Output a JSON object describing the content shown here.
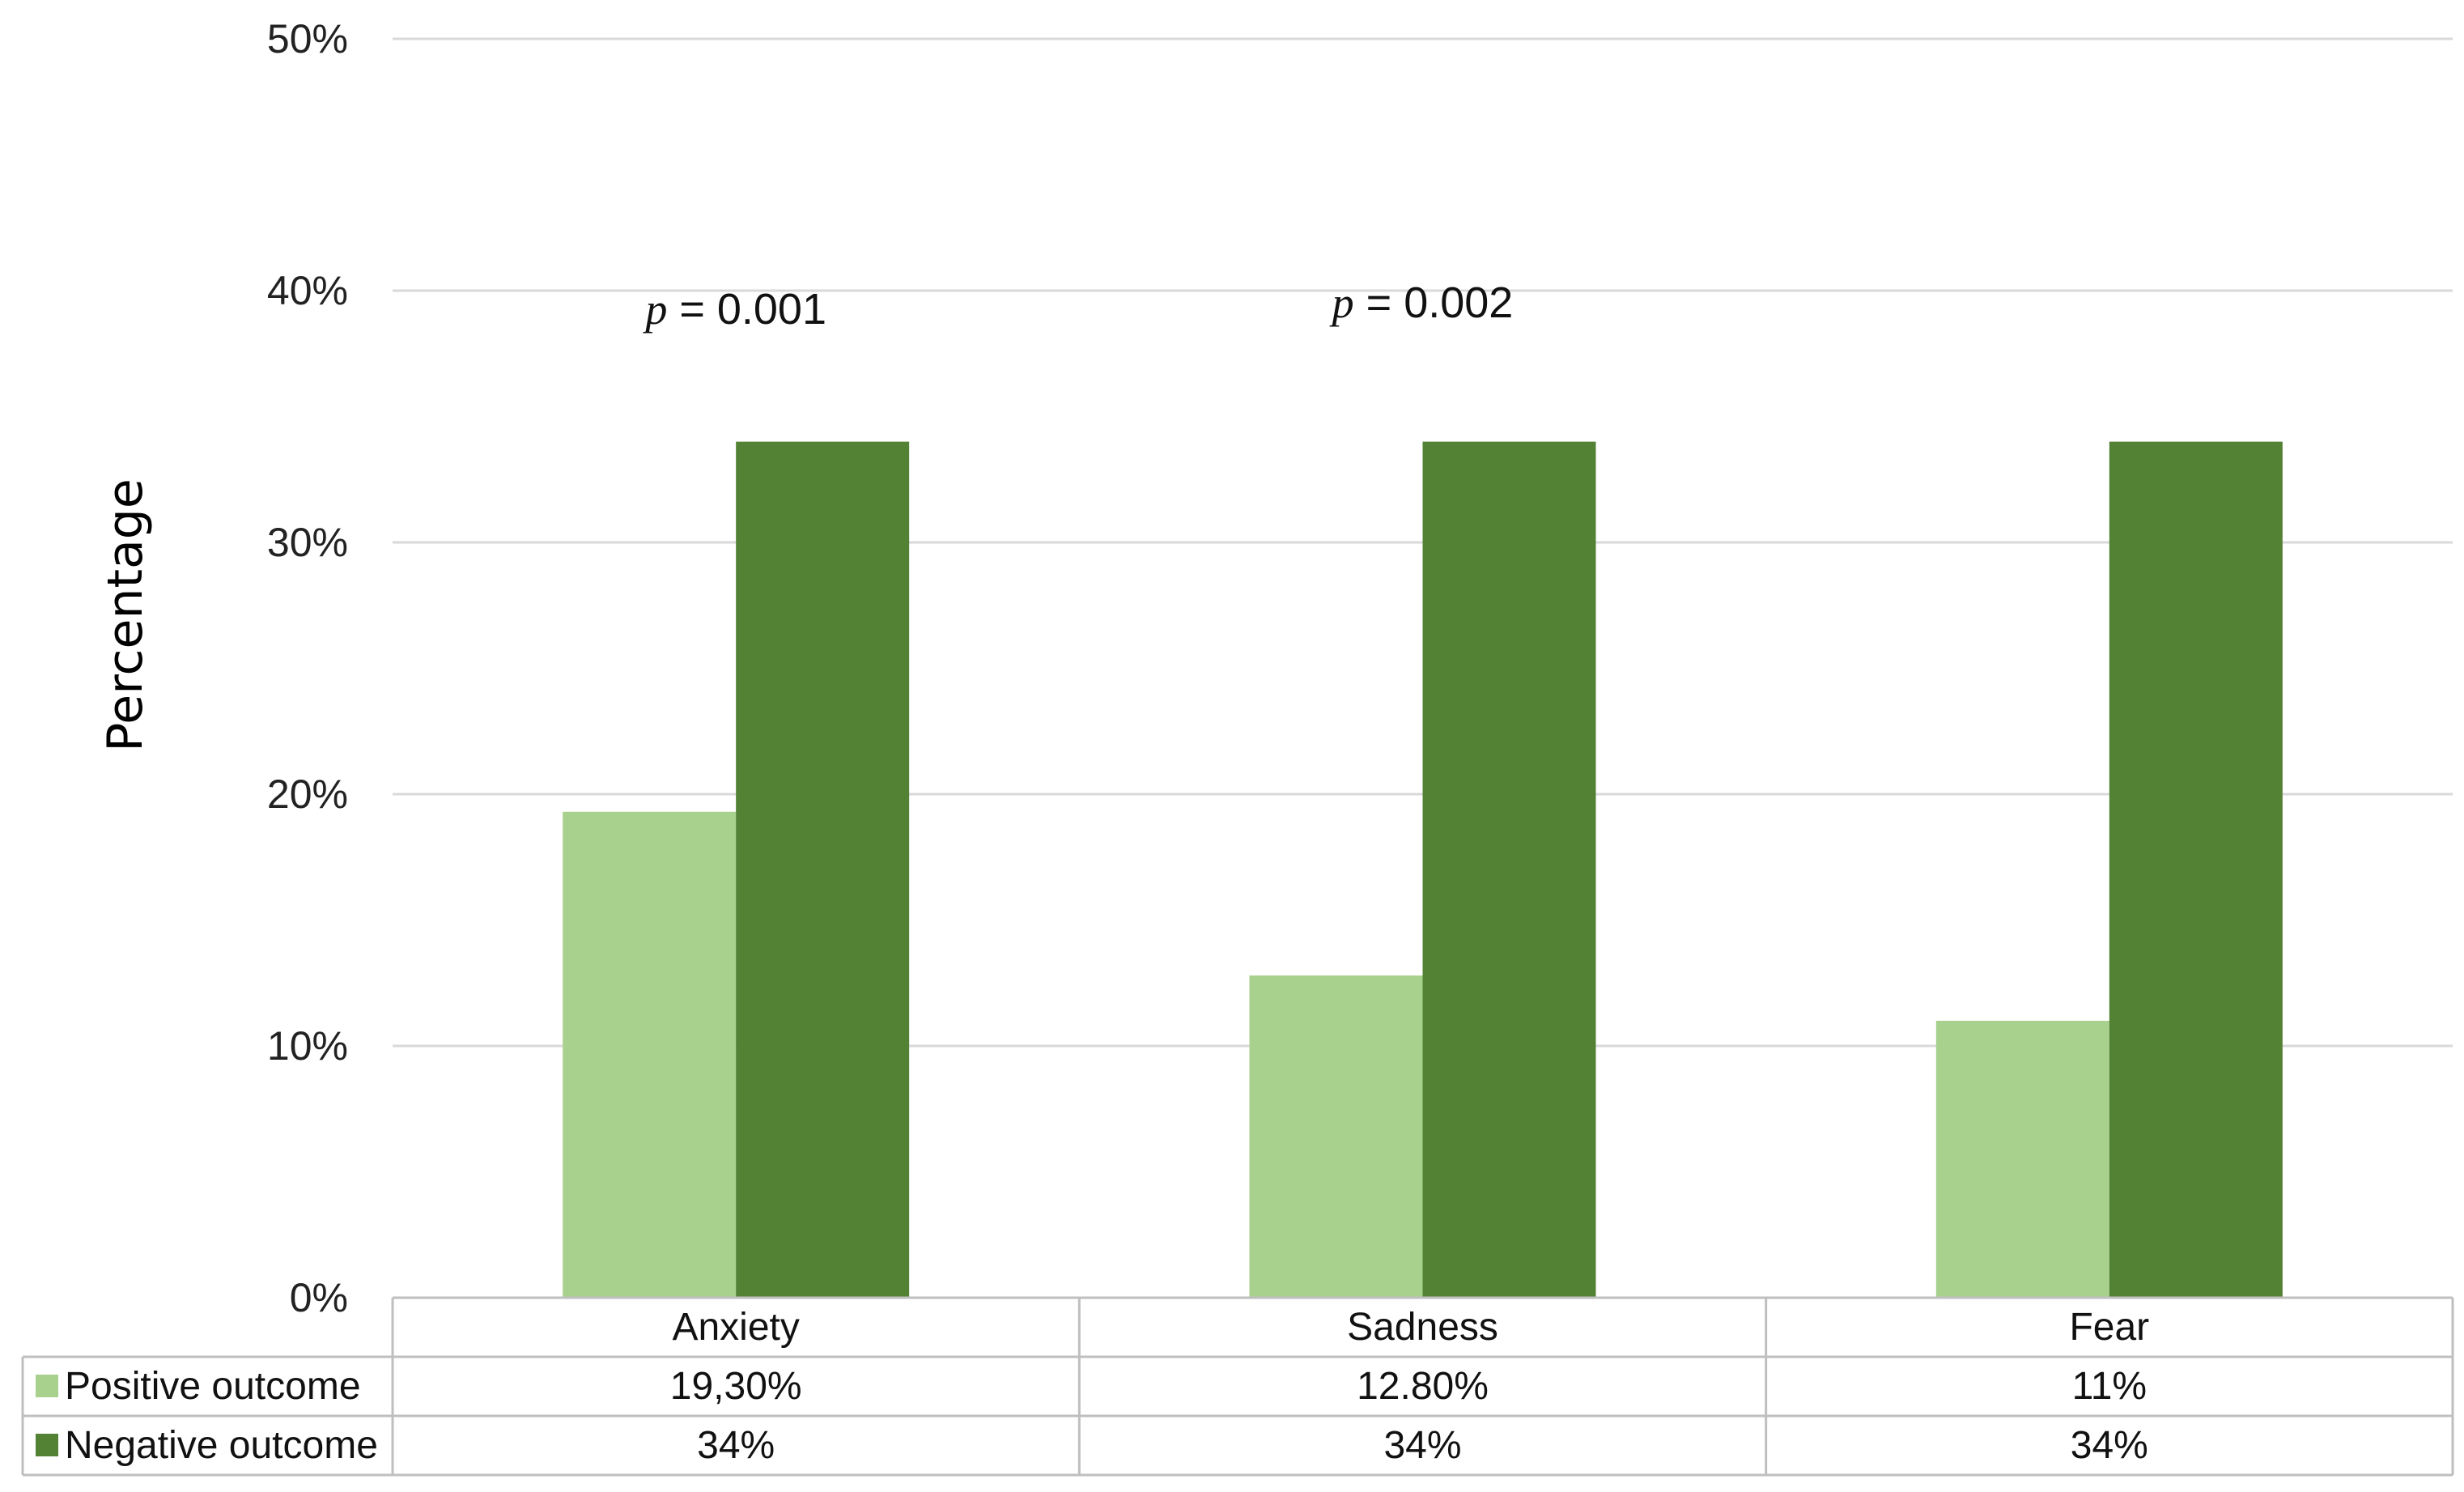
{
  "chart_data": {
    "type": "bar",
    "ylabel": "Percentage",
    "ylim": [
      0,
      50
    ],
    "yticks": [
      "0%",
      "10%",
      "20%",
      "30%",
      "40%",
      "50%"
    ],
    "categories": [
      "Anxiety",
      "Sadness",
      "Fear"
    ],
    "series": [
      {
        "name": "Positive outcome",
        "values": [
          19.3,
          12.8,
          11
        ],
        "labels": [
          "19,30%",
          "12.80%",
          "11%"
        ],
        "color": "#a9d18e"
      },
      {
        "name": "Negative outcome",
        "values": [
          34,
          34,
          34
        ],
        "labels": [
          "34%",
          "34%",
          "34%"
        ],
        "color": "#548235"
      }
    ],
    "annotations": [
      {
        "category": "Anxiety",
        "symbol": "p",
        "text": " = 0.001"
      },
      {
        "category": "Sadness",
        "symbol": "p",
        "text": " = 0.002"
      }
    ],
    "grid": true,
    "legend": "data-table-left"
  }
}
